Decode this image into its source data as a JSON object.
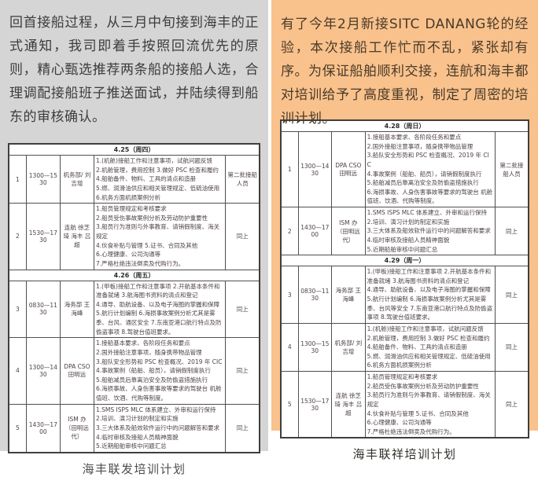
{
  "left_panel": {
    "background_color": "#d5d5d5",
    "paragraph": "回首接船过程，从三月中旬接到海丰的正式通知，我司即着手按照回流优先的原则，精心甄选推荐两条船的接船人选，合理调配接船班子推送面试，并陆续得到船东的审核确认。",
    "caption": "海丰联发培训计划",
    "table": {
      "sections": [
        {
          "date_header": "4.25（周四）",
          "rows": [
            {
              "no": "1",
              "time": "1300—1530",
              "lecturer": "机务部/ 刘吉增",
              "topics": "1.(机舱)接船工作和注意事项，试航问题反馈\n2.机舱管理，费用控制 3.做好 PSC 检查和履约\n4.船舶备件、物料、工具的清点和造册\n5.燃、润滑油供应和相关管理规定、低硫油使用\n6.机务方面机损案例分析",
              "trainees": "第二批接船人员"
            },
            {
              "no": "2",
              "time": "1530—1730",
              "lecturer": "连航 徐芝琦 海丰 吕超",
              "topics": "1.船员管理规定和考核要求\n2.船员受伤事故案例分析及劳动防护重要性\n3.船员行为准则与外事教育、请销假制度、海关规定\n4.伙食补贴与管理 5.证书、合同及其他\n6.心理健康、公司沟通等\n7.严格杜绝违法倒卖及代购行为。",
              "trainees": "同上"
            }
          ]
        },
        {
          "date_header": "4.26（周五）",
          "rows": [
            {
              "no": "3",
              "time": "0830—1130",
              "lecturer": "海务部 王海峰",
              "topics": "1.(甲板)接船工作和注意事项 2.开航基本条件和准备就绪 3.航海图书资料的清点和登记\n4.通导、助航设备、以及电子海图的掌握和保障\n5.航行计划编制 6.海损事故案例分析尤其是雾季、台风、通区安全 7.东南亚港口航行特点及防偷盗事项 8.驾驶台值班要求。",
              "trainees": "同上"
            },
            {
              "no": "4",
              "time": "1300—1430",
              "lecturer": "DPA CSO 田明远",
              "topics": "1.接船基本要求、各阶段任务和要点\n2.国外接船注意事项，随身携带物品管理\n3.船队安全形势和 PSC 检查概况、2019 年 CIC\n4.事故案例（船舶、船员），请销假制度执行\n5.船舶减员后靠离泊安全及防偷盗措施执行\n6.海损事故、人身伤害事故等要求的驾驶台 机舱值班、饮酒、代购等制度。",
              "trainees": "同上"
            },
            {
              "no": "5",
              "time": "1430—1700",
              "lecturer": "ISM 办（田明远代）",
              "topics": "1.SMS ISPS MLC 体系建立、外审和运行保持\n2.培训、演习计划的制定和实施\n3.三大体系及船效软件运行中的问题解答和要求\n4.临时审核及接船人员精神面貌\n5.近期船舶审核中问题汇总",
              "trainees": "同上"
            }
          ]
        }
      ]
    }
  },
  "right_panel": {
    "background_color": "#f9c28c",
    "paragraph": "有了今年2月新接SITC DANANG轮的经验，本次接船工作忙而不乱，紧张却有序。为保证船舶顺利交接，连航和海丰都对培训给予了高度重视，制定了周密的培训计划。",
    "caption": "海丰联祥培训计划",
    "table": {
      "sections": [
        {
          "date_header": "4.28（周日）",
          "rows": [
            {
              "no": "1",
              "time": "1300—1430",
              "lecturer": "DPA CSO 田明远",
              "topics": "1.接船基本要求、各阶段任务和要点\n2.国外接船注意事项，随身携带物品管理\n3.船队安全形势和 PSC 检查概况、2019 年 CIC\n4.事故案例（船舶、船员），请销假制度执行\n5.船舶减员后靠离泊安全及防偷盗措施执行\n6.海损事故、人身伤害事故等要求的驾驶台 机舱值班、饮酒、代购等制度。",
              "trainees": "第二批接船人员"
            },
            {
              "no": "2",
              "time": "1430—1700",
              "lecturer": "ISM 办（田明远代）",
              "topics": "1.SMS ISPS MLC 体系建立、外审和运行保持\n2.培训、演习计划的制定和实施\n3.三大体系及船效软件运行中的问题解答和要求\n4.临时审核及接船人员精神面貌\n5.近期船舶审核中问题汇总",
              "trainees": "同上"
            }
          ]
        },
        {
          "date_header": "4.29（周一）",
          "rows": [
            {
              "no": "3",
              "time": "0830—1130",
              "lecturer": "海务部 王海峰",
              "topics": "1.(甲板)接船工作和注意事项 2.开航基本条件和准备就绪 3.航海图书资料的清点和登记\n4.通导、助航设备、以及电子海图的掌握和保障\n5.航行计划编制 6.海损事故案例分析尤其是雾季、台风等安全 7.东南亚港口航行特点及防偷盗事项 8.驾驶台值班要求。",
              "trainees": "同上"
            },
            {
              "no": "4",
              "time": "1300—1530",
              "lecturer": "机务部/ 刘吉增",
              "topics": "1.(机舱)接船工作和注意事项，试航问题反馈\n2.机舱管理，费用控制 3.做好 PSC 检查和履约\n4.船舶备件、物料、工具的清点和造册\n5.燃、润滑油供应和相关管理规定、低硫油使用\n6.机务方面机损案例分析",
              "trainees": "同上"
            },
            {
              "no": "5",
              "time": "1530—1730",
              "lecturer": "连航 徐芝琦 海丰 吕超",
              "topics": "1.船员管理规定和考核要求\n2.船员受伤事故案例分析及劳动防护重要性\n3.船员行为准则与外事教育、请销假制度、海关规定\n4.伙食补贴与管理 5.证书、合同及其他\n6.心理健康、公司沟通等\n7.严格杜绝违法倒卖及代购行为。",
              "trainees": "同上"
            }
          ]
        }
      ]
    }
  }
}
